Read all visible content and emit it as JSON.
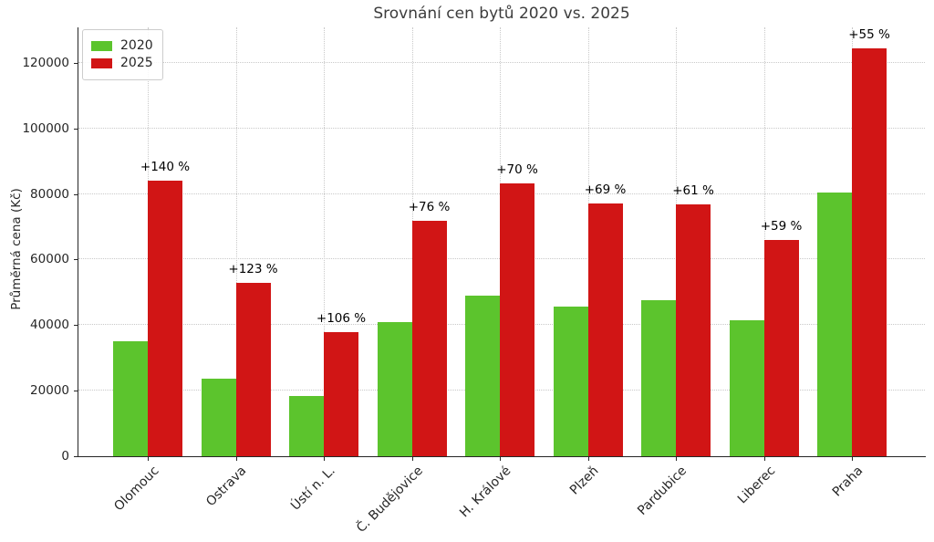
{
  "chart_data": {
    "type": "bar",
    "title": "Srovnání cen bytů 2020 vs. 2025",
    "xlabel": "",
    "ylabel": "Průměrná cena (Kč)",
    "categories": [
      "Olomouc",
      "Ostrava",
      "Ústí n. L.",
      "Č. Budějovice",
      "H. Králové",
      "Plzeň",
      "Pardubice",
      "Liberec",
      "Praha"
    ],
    "series": [
      {
        "name": "2020",
        "color": "#5cc42d",
        "values": [
          35000,
          23700,
          18400,
          40800,
          49000,
          45700,
          47700,
          41500,
          80300
        ]
      },
      {
        "name": "2025",
        "color": "#d11515",
        "values": [
          84000,
          52900,
          37900,
          71800,
          83300,
          77200,
          76800,
          66000,
          124500
        ]
      }
    ],
    "annotations": [
      "+140 %",
      "+123 %",
      "+106 %",
      "+76 %",
      "+70 %",
      "+69 %",
      "+61 %",
      "+59 %",
      "+55 %"
    ],
    "yticks": [
      0,
      20000,
      40000,
      60000,
      80000,
      100000,
      120000
    ],
    "ylim": [
      0,
      130800
    ],
    "grid": true,
    "grid_style": "dotted",
    "legend_position": "upper-left",
    "x_label_rotation_deg": 45,
    "colors": {
      "series_2020": "#5cc42d",
      "series_2025": "#d11515",
      "grid": "#c9c9c9",
      "spine": "#262626",
      "title_text": "#3c3c3c",
      "background": "#ffffff"
    }
  }
}
